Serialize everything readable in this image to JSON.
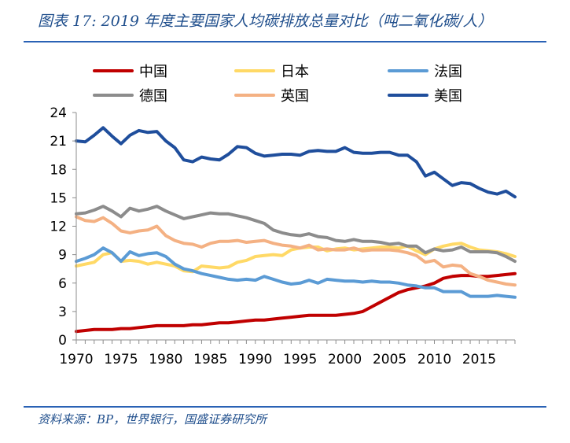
{
  "figure": {
    "title": "图表 17:  2019 年度主要国家人均碳排放总量对比（吨二氧化碳/人）",
    "source": "资料来源：BP，世界银行，国盛证券研究所"
  },
  "chart_data": {
    "type": "line",
    "title": "图表 17:  2019 年度主要国家人均碳排放总量对比（吨二氧化碳/人）",
    "xlabel": "",
    "ylabel": "",
    "xlim": [
      1970,
      2019
    ],
    "ylim": [
      0,
      24
    ],
    "x_ticks": [
      "1970",
      "1975",
      "1980",
      "1985",
      "1990",
      "1995",
      "2000",
      "2005",
      "2010",
      "2015"
    ],
    "y_ticks": [
      "0",
      "3",
      "6",
      "9",
      "12",
      "15",
      "18",
      "21",
      "24"
    ],
    "grid": false,
    "legend_position": "top",
    "x": [
      1970,
      1971,
      1972,
      1973,
      1974,
      1975,
      1976,
      1977,
      1978,
      1979,
      1980,
      1981,
      1982,
      1983,
      1984,
      1985,
      1986,
      1987,
      1988,
      1989,
      1990,
      1991,
      1992,
      1993,
      1994,
      1995,
      1996,
      1997,
      1998,
      1999,
      2000,
      2001,
      2002,
      2003,
      2004,
      2005,
      2006,
      2007,
      2008,
      2009,
      2010,
      2011,
      2012,
      2013,
      2014,
      2015,
      2016,
      2017,
      2018,
      2019
    ],
    "series": [
      {
        "name": "中国",
        "color": "#c00000",
        "values": [
          0.9,
          1.0,
          1.1,
          1.1,
          1.1,
          1.2,
          1.2,
          1.3,
          1.4,
          1.5,
          1.5,
          1.5,
          1.5,
          1.6,
          1.6,
          1.7,
          1.8,
          1.8,
          1.9,
          2.0,
          2.1,
          2.1,
          2.2,
          2.3,
          2.4,
          2.5,
          2.6,
          2.6,
          2.6,
          2.6,
          2.7,
          2.8,
          3.0,
          3.5,
          4.0,
          4.5,
          5.0,
          5.3,
          5.5,
          5.7,
          6.0,
          6.5,
          6.7,
          6.8,
          6.8,
          6.7,
          6.7,
          6.8,
          6.9,
          7.0
        ]
      },
      {
        "name": "日本",
        "color": "#ffd966",
        "values": [
          7.8,
          8.0,
          8.2,
          9.0,
          9.2,
          8.3,
          8.4,
          8.3,
          8.0,
          8.2,
          8.0,
          7.8,
          7.3,
          7.2,
          7.8,
          7.7,
          7.6,
          7.7,
          8.2,
          8.4,
          8.8,
          8.9,
          9.0,
          8.9,
          9.5,
          9.7,
          9.8,
          9.8,
          9.4,
          9.6,
          9.7,
          9.5,
          9.6,
          9.7,
          9.8,
          9.8,
          9.7,
          9.9,
          9.4,
          9.0,
          9.6,
          9.9,
          10.1,
          10.2,
          9.8,
          9.5,
          9.4,
          9.3,
          9.1,
          8.8
        ]
      },
      {
        "name": "法国",
        "color": "#5b9bd5",
        "values": [
          8.3,
          8.6,
          9.0,
          9.7,
          9.2,
          8.3,
          9.3,
          8.9,
          9.1,
          9.2,
          8.8,
          8.0,
          7.5,
          7.3,
          7.0,
          6.8,
          6.6,
          6.4,
          6.3,
          6.4,
          6.3,
          6.7,
          6.4,
          6.1,
          5.9,
          6.0,
          6.3,
          6.0,
          6.4,
          6.3,
          6.2,
          6.2,
          6.1,
          6.2,
          6.1,
          6.1,
          6.0,
          5.8,
          5.7,
          5.5,
          5.5,
          5.1,
          5.1,
          5.1,
          4.6,
          4.6,
          4.6,
          4.7,
          4.6,
          4.5
        ]
      },
      {
        "name": "德国",
        "color": "#8c8c8c",
        "values": [
          13.3,
          13.4,
          13.7,
          14.1,
          13.6,
          13.0,
          13.9,
          13.6,
          13.8,
          14.1,
          13.6,
          13.2,
          12.8,
          13.0,
          13.2,
          13.4,
          13.3,
          13.3,
          13.1,
          12.9,
          12.6,
          12.3,
          11.6,
          11.3,
          11.1,
          11.0,
          11.2,
          10.9,
          10.8,
          10.5,
          10.4,
          10.6,
          10.4,
          10.4,
          10.3,
          10.1,
          10.2,
          9.9,
          9.9,
          9.2,
          9.6,
          9.4,
          9.5,
          9.8,
          9.3,
          9.3,
          9.3,
          9.2,
          8.8,
          8.3
        ]
      },
      {
        "name": "英国",
        "color": "#f4b183",
        "values": [
          13.0,
          12.6,
          12.5,
          12.9,
          12.3,
          11.5,
          11.3,
          11.5,
          11.6,
          12.0,
          11.0,
          10.5,
          10.2,
          10.1,
          9.8,
          10.2,
          10.4,
          10.4,
          10.5,
          10.3,
          10.4,
          10.5,
          10.2,
          10.0,
          9.9,
          9.7,
          10.0,
          9.5,
          9.6,
          9.5,
          9.5,
          9.7,
          9.4,
          9.5,
          9.5,
          9.5,
          9.4,
          9.2,
          8.9,
          8.2,
          8.4,
          7.7,
          7.9,
          7.8,
          7.0,
          6.7,
          6.3,
          6.1,
          5.9,
          5.8
        ]
      },
      {
        "name": "美国",
        "color": "#1f4e9c",
        "values": [
          21.0,
          20.9,
          21.6,
          22.4,
          21.5,
          20.7,
          21.6,
          22.1,
          21.9,
          22.0,
          21.0,
          20.3,
          19.0,
          18.8,
          19.3,
          19.1,
          19.0,
          19.6,
          20.4,
          20.3,
          19.7,
          19.4,
          19.5,
          19.6,
          19.6,
          19.5,
          19.9,
          20.0,
          19.9,
          19.9,
          20.3,
          19.8,
          19.7,
          19.7,
          19.8,
          19.8,
          19.5,
          19.5,
          18.8,
          17.3,
          17.7,
          17.0,
          16.3,
          16.6,
          16.5,
          16.0,
          15.6,
          15.4,
          15.7,
          15.1
        ]
      }
    ]
  }
}
